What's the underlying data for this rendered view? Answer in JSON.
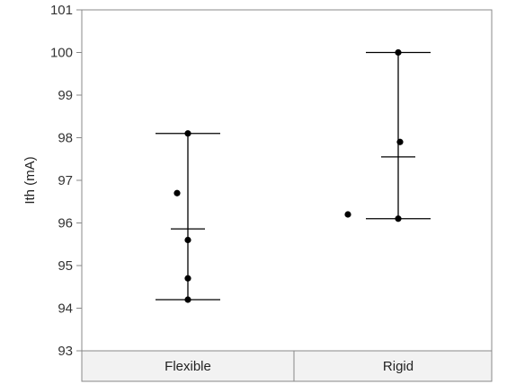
{
  "chart_data": {
    "type": "scatter",
    "ylabel": "Ith (mA)",
    "xlabel": "",
    "ylim": [
      93,
      101
    ],
    "yticks": [
      93,
      94,
      95,
      96,
      97,
      98,
      99,
      100,
      101
    ],
    "categories": [
      "Flexible",
      "Rigid"
    ],
    "points": [
      {
        "category": "Flexible",
        "values": [
          98.1,
          96.7,
          95.6,
          94.7,
          94.2
        ]
      },
      {
        "category": "Rigid",
        "values": [
          100.0,
          97.9,
          96.2,
          96.1
        ]
      }
    ],
    "summary": [
      {
        "category": "Flexible",
        "max": 98.1,
        "mean": 95.86,
        "min": 94.2
      },
      {
        "category": "Rigid",
        "max": 100.0,
        "mean": 97.55,
        "min": 96.1
      }
    ],
    "grid": false,
    "point_color": "#000000",
    "line_color": "#000000",
    "axis_color": "#888888",
    "band_color": "#f2f2f2"
  }
}
